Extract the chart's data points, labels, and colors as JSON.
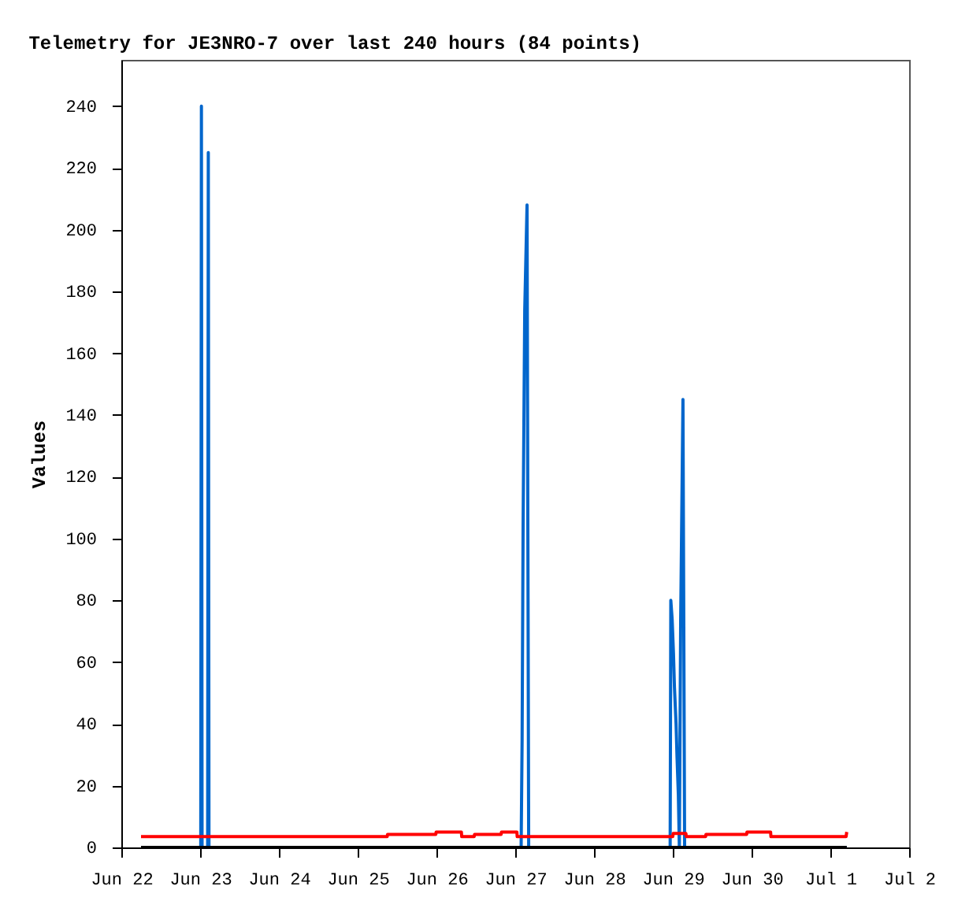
{
  "chart_data": {
    "type": "line",
    "title": "Telemetry for JE3NRO-7 over last 240 hours (84 points)",
    "ylabel": "Values",
    "xlim": [
      "--06-22",
      "--07-02"
    ],
    "xticks": [
      {
        "value": "--06-22",
        "label": "Jun 22"
      },
      {
        "value": "--06-23",
        "label": "Jun 23"
      },
      {
        "value": "--06-24",
        "label": "Jun 24"
      },
      {
        "value": "--06-25",
        "label": "Jun 25"
      },
      {
        "value": "--06-26",
        "label": "Jun 26"
      },
      {
        "value": "--06-27",
        "label": "Jun 27"
      },
      {
        "value": "--06-28",
        "label": "Jun 28"
      },
      {
        "value": "--06-29",
        "label": "Jun 29"
      },
      {
        "value": "--06-30",
        "label": "Jun 30"
      },
      {
        "value": "--07-01",
        "label": "Jul 1"
      },
      {
        "value": "--07-02",
        "label": "Jul 2"
      }
    ],
    "ylim": [
      0,
      255
    ],
    "yticks": [
      0,
      20,
      40,
      60,
      80,
      100,
      120,
      140,
      160,
      180,
      200,
      220,
      240
    ],
    "marker": "none",
    "line_style": "solid",
    "series": [
      {
        "color": "#0066cc",
        "x": [
          "--06-22T06:00",
          "--06-23T00:12",
          "--06-23T00:24",
          "--06-23T00:36",
          "--06-23T02:18",
          "--06-23T02:30",
          "--06-23T02:42",
          "--06-27T01:48",
          "--06-27T02:06",
          "--06-27T02:24",
          "--06-27T02:54",
          "--06-27T03:36",
          "--06-27T04:06",
          "--06-28T23:12",
          "--06-28T23:24",
          "--06-28T23:48",
          "--06-29T00:12",
          "--06-29T00:30",
          "--06-29T01:00",
          "--06-29T01:18",
          "--06-29T01:42",
          "--06-29T02:00",
          "--06-29T02:24",
          "--06-29T03:06",
          "--06-29T03:36",
          "--07-01T05:00"
        ],
        "values": [
          0,
          0,
          240,
          0,
          0,
          225,
          0,
          0,
          35,
          104,
          174,
          208,
          0,
          0,
          80,
          74,
          63,
          52,
          40,
          29,
          17,
          0,
          73,
          145,
          0,
          0
        ]
      },
      {
        "color": "#ff0000",
        "x": [
          "--06-22T06:00",
          "--06-25T09:00",
          "--06-25T09:06",
          "--06-25T23:48",
          "--06-25T23:54",
          "--06-26T07:36",
          "--06-26T07:42",
          "--06-26T11:30",
          "--06-26T11:36",
          "--06-26T19:42",
          "--06-26T19:48",
          "--06-27T00:30",
          "--06-27T00:36",
          "--06-29T00:00",
          "--06-29T00:06",
          "--06-29T04:00",
          "--06-29T04:06",
          "--06-29T10:00",
          "--06-29T10:06",
          "--06-29T22:30",
          "--06-29T22:36",
          "--06-30T05:48",
          "--06-30T05:54",
          "--07-01T04:48",
          "--07-01T05:00"
        ],
        "values": [
          3.5,
          3.5,
          4.2,
          4.2,
          5,
          5,
          3.5,
          3.5,
          4.2,
          4.2,
          5,
          5,
          3.5,
          3.5,
          4.5,
          4.5,
          3.5,
          3.5,
          4.2,
          4.2,
          5,
          5,
          3.5,
          3.5,
          5
        ]
      },
      {
        "color": "#000000",
        "x": [
          "--06-22T06:00",
          "--07-01T05:00"
        ],
        "values": [
          0,
          0
        ]
      }
    ]
  }
}
